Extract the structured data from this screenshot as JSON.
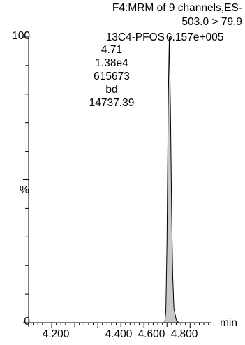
{
  "chart_data": {
    "type": "area",
    "header_line1": "F4:MRM of 9 channels,ES-",
    "header_line2": "503.0 > 79.9",
    "compound": "13C4-PFOS",
    "peak_max": "6.157e+005",
    "peak_info": [
      "4.71",
      "1.38e4",
      "615673",
      "bd",
      "14737.39"
    ],
    "xlabel": "min",
    "ylabel": "%",
    "y_tick_labels": [
      "0",
      "100"
    ],
    "x_tick_labels": [
      "4.200",
      "4.400",
      "4.600",
      "4.800"
    ],
    "xlim": [
      4.1,
      4.89
    ],
    "ylim": [
      0,
      100
    ],
    "x_major_ticks": [
      4.2,
      4.4,
      4.6,
      4.8
    ],
    "x_minor_step": 0.02,
    "y_ticks": [
      0,
      10,
      20,
      30,
      40,
      50,
      60,
      70,
      80,
      90,
      100
    ],
    "series": [
      {
        "x": [
          4.1,
          4.65,
          4.69,
          4.695,
          4.7,
          4.705,
          4.71,
          4.715,
          4.72,
          4.725,
          4.73,
          4.74,
          4.75,
          4.89
        ],
        "y": [
          0,
          0,
          0,
          4,
          28,
          75,
          100,
          75,
          40,
          16,
          5,
          1,
          0,
          0
        ]
      }
    ],
    "fill_color": "#c8c8c8",
    "line_color": "#000000"
  }
}
